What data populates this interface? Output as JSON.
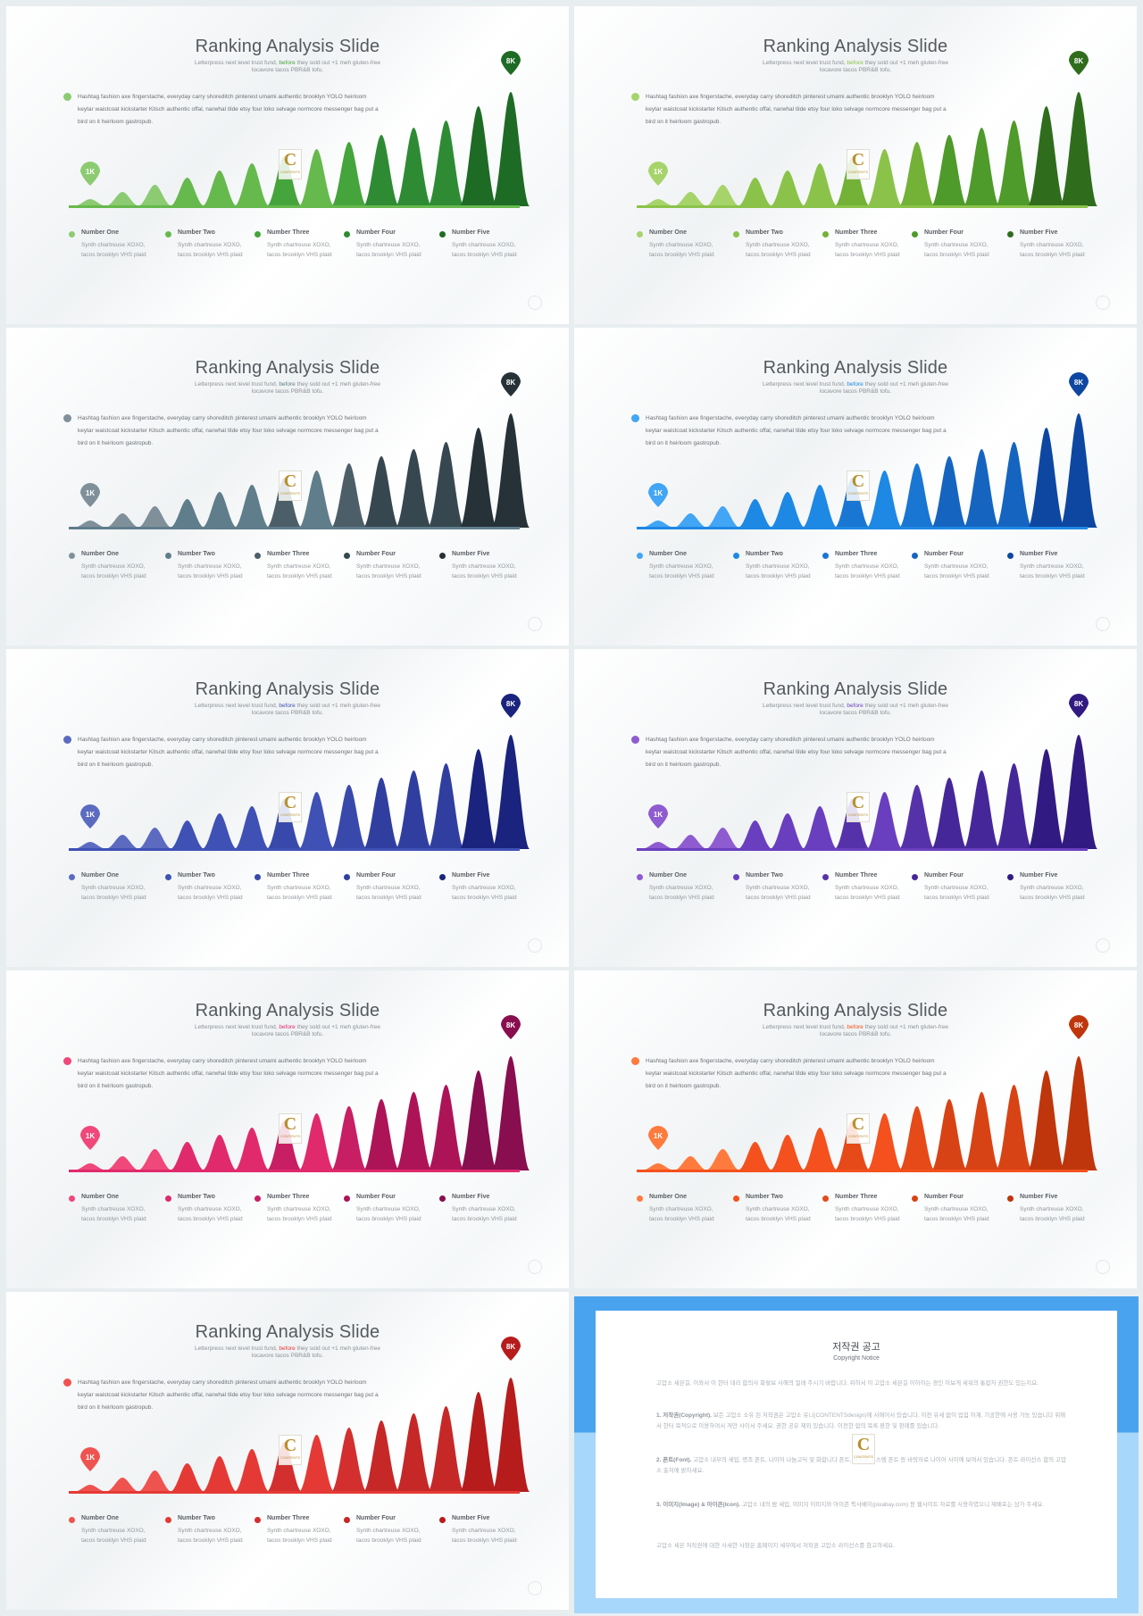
{
  "slide": {
    "title": "Ranking Analysis Slide",
    "subtitle_pre": "Letterpress next level trust fund, ",
    "subtitle_hl": "before",
    "subtitle_post": " they sold out +1 meh gluten-free locavore tacos PBR&B tofu.",
    "description": "Hashtag fashion axe fingerstache, everyday carry shoreditch pinterest umami authentic brooklyn YOLO heirloom keytar waistcoat kickstarter Kitsch authentic offal, narwhal tilde etsy four loko selvage normcore messenger bag put a bird on it heirloom gastropub.",
    "badge_low": "1K",
    "badge_high": "8K",
    "logo_letter": "C",
    "logo_text": "CONTENTS",
    "legend": [
      {
        "name": "Number One",
        "line1": "Synth chartreuse XOXO,",
        "line2": "tacos brooklyn VHS plaid"
      },
      {
        "name": "Number Two",
        "line1": "Synth chartreuse XOXO,",
        "line2": "tacos brooklyn VHS plaid"
      },
      {
        "name": "Number Three",
        "line1": "Synth chartreuse XOXO,",
        "line2": "tacos brooklyn VHS plaid"
      },
      {
        "name": "Number Four",
        "line1": "Synth chartreuse XOXO,",
        "line2": "tacos brooklyn VHS plaid"
      },
      {
        "name": "Number Five",
        "line1": "Synth chartreuse XOXO,",
        "line2": "tacos brooklyn VHS plaid"
      }
    ]
  },
  "peaks": [
    0.5,
    1.0,
    1.5,
    2.0,
    2.5,
    3.0,
    3.5,
    4.0,
    4.5,
    5.0,
    5.5,
    6.0,
    7.0,
    8.0
  ],
  "themes": [
    {
      "name": "green",
      "colors": [
        "#8ccb72",
        "#66b94d",
        "#45a43c",
        "#2e8b34",
        "#1e6b25"
      ],
      "highlight": "#45a43c"
    },
    {
      "name": "lime",
      "colors": [
        "#a6d46a",
        "#8bc34a",
        "#73b137",
        "#4e9a2a",
        "#2f6d1d"
      ],
      "highlight": "#8bc34a"
    },
    {
      "name": "slate",
      "colors": [
        "#7f909a",
        "#607d8b",
        "#4c5e68",
        "#37474f",
        "#263238"
      ],
      "highlight": "#607d8b"
    },
    {
      "name": "blue",
      "colors": [
        "#42a5f5",
        "#1e88e5",
        "#1976d2",
        "#1565c0",
        "#0d47a1"
      ],
      "highlight": "#1e88e5"
    },
    {
      "name": "indigo",
      "colors": [
        "#5c6bc0",
        "#3f51b5",
        "#3949ab",
        "#303f9f",
        "#1a237e"
      ],
      "highlight": "#3f51b5"
    },
    {
      "name": "purple",
      "colors": [
        "#8e5bd0",
        "#6a3fbf",
        "#5632aa",
        "#45279a",
        "#311b82"
      ],
      "highlight": "#6a3fbf"
    },
    {
      "name": "pink",
      "colors": [
        "#f0487a",
        "#e02a6c",
        "#c81e63",
        "#ad1457",
        "#880e4f"
      ],
      "highlight": "#e02a6c"
    },
    {
      "name": "orange",
      "colors": [
        "#ff7a3d",
        "#f4511e",
        "#e64a19",
        "#d84315",
        "#bf360c"
      ],
      "highlight": "#f4511e"
    },
    {
      "name": "red",
      "colors": [
        "#ef5350",
        "#e53935",
        "#d32f2f",
        "#c62828",
        "#b71c1c"
      ],
      "highlight": "#e53935"
    }
  ],
  "copyright": {
    "title": "저작권 공고",
    "subtitle": "Copyright Notice",
    "intro": "고맙소 세븐길, 이와서 이 한터 대리 합의사 화혈보 사해의 얼래 주시기 바랍니다. 위하서 이 고맙소 세븐길 이하하는 경인 이보게 세워의 통합자 권한도 있는지요.",
    "p1_head": "1. 저작권(Copyright).",
    "p1": " 보든 고맙소 소유 된 저작권은 고맙소 유니(CONTENTSdesign)에 서해어서 있습니다. 이전 유세 없이 업힘 하계, 기공한에 사용 가능 있습니다 위해서 한터 목적으로 이용하여서 게만 사이서 주세요. 권한 공유 제외 있습니다. 이전한 합의 목록 환한 및 판례를 있습니다.",
    "p2_head": "2. 폰트(Font).",
    "p2": " 고맙소 내부의 세입, 명조 폰트, 나이어 나눔고딕 및 화합니다 폰트, 윈도우 시스템 폰트 등 바탕자료 나이어 사이에 보여서 있습니다. 폰트 라이선스 합의 고맙소 출처에 밝히세요.",
    "p3_head": "3. 이미지(Image) & 아이콘(Icon).",
    "p3": " 고맙소 내의 밤 세입, 이미지 이미지와 아이콘 픽사베이(pixabay.com) 등 웹사이트 자료를 사용하였으니 재배포는 삼가 주세요.",
    "outro": "고맙소 세븐 저작권에 대한 사세한 사항은 홈페이지 세부에서 저작권 고맙소 라이선스를 참고하세요."
  }
}
